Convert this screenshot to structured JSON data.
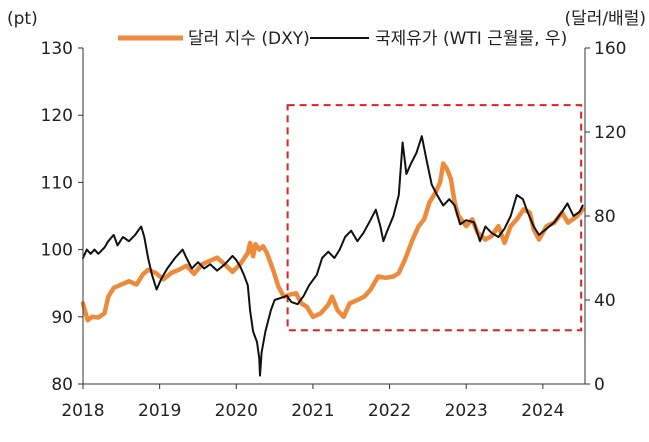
{
  "chart_data": {
    "type": "line",
    "left_axis": {
      "unit": "(pt)",
      "ticks": [
        80,
        90,
        100,
        110,
        120,
        130
      ],
      "range": [
        80,
        130
      ]
    },
    "right_axis": {
      "unit": "(달러/배럴)",
      "ticks": [
        0,
        40,
        80,
        120,
        160
      ],
      "range": [
        0,
        160
      ]
    },
    "x_axis": {
      "ticks": [
        "2018",
        "2019",
        "2020",
        "2021",
        "2022",
        "2023",
        "2024"
      ],
      "range": [
        2018.0,
        2024.55
      ]
    },
    "grid": false,
    "legend_position": "top",
    "highlight_box": {
      "x_start": 2020.67,
      "x_end": 2024.5,
      "y_start": 88,
      "y_end": 121.5,
      "axis": "left",
      "color": "#e02020",
      "style": "dashed"
    },
    "series": [
      {
        "name": "달러 지수 (DXY)",
        "axis": "left",
        "color": "#ed8a3c",
        "points": [
          [
            2018.0,
            92.0
          ],
          [
            2018.06,
            89.5
          ],
          [
            2018.12,
            90.0
          ],
          [
            2018.2,
            89.9
          ],
          [
            2018.28,
            90.5
          ],
          [
            2018.33,
            93.0
          ],
          [
            2018.4,
            94.3
          ],
          [
            2018.5,
            94.8
          ],
          [
            2018.6,
            95.3
          ],
          [
            2018.7,
            94.8
          ],
          [
            2018.78,
            96.3
          ],
          [
            2018.85,
            97.0
          ],
          [
            2018.95,
            96.5
          ],
          [
            2019.05,
            95.6
          ],
          [
            2019.15,
            96.5
          ],
          [
            2019.25,
            97.0
          ],
          [
            2019.35,
            97.6
          ],
          [
            2019.45,
            96.4
          ],
          [
            2019.55,
            97.8
          ],
          [
            2019.65,
            98.3
          ],
          [
            2019.75,
            98.8
          ],
          [
            2019.85,
            97.8
          ],
          [
            2019.95,
            96.7
          ],
          [
            2020.05,
            97.8
          ],
          [
            2020.15,
            99.5
          ],
          [
            2020.18,
            101.0
          ],
          [
            2020.22,
            99.0
          ],
          [
            2020.25,
            100.8
          ],
          [
            2020.3,
            100.0
          ],
          [
            2020.35,
            100.5
          ],
          [
            2020.4,
            99.5
          ],
          [
            2020.48,
            97.0
          ],
          [
            2020.55,
            94.5
          ],
          [
            2020.62,
            93.0
          ],
          [
            2020.7,
            93.3
          ],
          [
            2020.78,
            93.5
          ],
          [
            2020.85,
            92.0
          ],
          [
            2020.92,
            91.5
          ],
          [
            2021.0,
            90.0
          ],
          [
            2021.1,
            90.5
          ],
          [
            2021.2,
            91.8
          ],
          [
            2021.25,
            93.0
          ],
          [
            2021.32,
            91.0
          ],
          [
            2021.4,
            90.0
          ],
          [
            2021.48,
            92.0
          ],
          [
            2021.58,
            92.5
          ],
          [
            2021.67,
            93.0
          ],
          [
            2021.75,
            94.0
          ],
          [
            2021.85,
            96.0
          ],
          [
            2021.95,
            95.8
          ],
          [
            2022.05,
            96.0
          ],
          [
            2022.12,
            96.5
          ],
          [
            2022.2,
            98.5
          ],
          [
            2022.3,
            101.5
          ],
          [
            2022.38,
            103.5
          ],
          [
            2022.45,
            104.5
          ],
          [
            2022.52,
            107.0
          ],
          [
            2022.6,
            108.5
          ],
          [
            2022.66,
            110.0
          ],
          [
            2022.7,
            112.8
          ],
          [
            2022.75,
            112.0
          ],
          [
            2022.8,
            110.5
          ],
          [
            2022.85,
            107.0
          ],
          [
            2022.9,
            105.0
          ],
          [
            2023.0,
            103.5
          ],
          [
            2023.08,
            104.5
          ],
          [
            2023.15,
            102.5
          ],
          [
            2023.25,
            101.5
          ],
          [
            2023.33,
            102.0
          ],
          [
            2023.42,
            103.5
          ],
          [
            2023.5,
            101.0
          ],
          [
            2023.58,
            103.5
          ],
          [
            2023.66,
            104.5
          ],
          [
            2023.75,
            106.0
          ],
          [
            2023.83,
            105.5
          ],
          [
            2023.88,
            103.0
          ],
          [
            2023.95,
            101.5
          ],
          [
            2024.05,
            103.5
          ],
          [
            2024.15,
            104.0
          ],
          [
            2024.25,
            105.5
          ],
          [
            2024.33,
            104.0
          ],
          [
            2024.45,
            105.0
          ],
          [
            2024.52,
            106.0
          ]
        ]
      },
      {
        "name": "국제유가 (WTI 근월물, 우)",
        "axis": "right",
        "color": "#111111",
        "points": [
          [
            2018.0,
            60
          ],
          [
            2018.05,
            64
          ],
          [
            2018.1,
            62
          ],
          [
            2018.15,
            64
          ],
          [
            2018.2,
            62
          ],
          [
            2018.28,
            65
          ],
          [
            2018.33,
            68
          ],
          [
            2018.4,
            71
          ],
          [
            2018.45,
            66
          ],
          [
            2018.52,
            70
          ],
          [
            2018.6,
            68
          ],
          [
            2018.68,
            71
          ],
          [
            2018.76,
            75
          ],
          [
            2018.8,
            70
          ],
          [
            2018.85,
            60
          ],
          [
            2018.9,
            52
          ],
          [
            2018.96,
            45
          ],
          [
            2019.02,
            50
          ],
          [
            2019.1,
            55
          ],
          [
            2019.2,
            60
          ],
          [
            2019.3,
            64
          ],
          [
            2019.35,
            60
          ],
          [
            2019.42,
            55
          ],
          [
            2019.5,
            58
          ],
          [
            2019.58,
            55
          ],
          [
            2019.66,
            57
          ],
          [
            2019.75,
            54
          ],
          [
            2019.85,
            57
          ],
          [
            2019.95,
            61
          ],
          [
            2020.0,
            59
          ],
          [
            2020.05,
            56
          ],
          [
            2020.1,
            52
          ],
          [
            2020.15,
            47
          ],
          [
            2020.18,
            35
          ],
          [
            2020.22,
            25
          ],
          [
            2020.27,
            20
          ],
          [
            2020.3,
            12
          ],
          [
            2020.31,
            4
          ],
          [
            2020.33,
            15
          ],
          [
            2020.38,
            25
          ],
          [
            2020.45,
            35
          ],
          [
            2020.5,
            40
          ],
          [
            2020.58,
            41
          ],
          [
            2020.66,
            42
          ],
          [
            2020.72,
            39
          ],
          [
            2020.8,
            38
          ],
          [
            2020.88,
            42
          ],
          [
            2020.95,
            47
          ],
          [
            2021.05,
            52
          ],
          [
            2021.12,
            60
          ],
          [
            2021.2,
            63
          ],
          [
            2021.28,
            60
          ],
          [
            2021.35,
            64
          ],
          [
            2021.42,
            70
          ],
          [
            2021.5,
            73
          ],
          [
            2021.58,
            68
          ],
          [
            2021.66,
            72
          ],
          [
            2021.75,
            78
          ],
          [
            2021.82,
            83
          ],
          [
            2021.88,
            75
          ],
          [
            2021.92,
            68
          ],
          [
            2021.96,
            72
          ],
          [
            2022.05,
            80
          ],
          [
            2022.12,
            90
          ],
          [
            2022.17,
            115
          ],
          [
            2022.22,
            100
          ],
          [
            2022.28,
            105
          ],
          [
            2022.35,
            110
          ],
          [
            2022.42,
            118
          ],
          [
            2022.48,
            107
          ],
          [
            2022.55,
            95
          ],
          [
            2022.62,
            90
          ],
          [
            2022.7,
            85
          ],
          [
            2022.78,
            88
          ],
          [
            2022.85,
            85
          ],
          [
            2022.92,
            76
          ],
          [
            2023.0,
            78
          ],
          [
            2023.1,
            77
          ],
          [
            2023.18,
            68
          ],
          [
            2023.25,
            75
          ],
          [
            2023.33,
            72
          ],
          [
            2023.42,
            70
          ],
          [
            2023.5,
            74
          ],
          [
            2023.58,
            80
          ],
          [
            2023.66,
            90
          ],
          [
            2023.74,
            88
          ],
          [
            2023.8,
            82
          ],
          [
            2023.88,
            75
          ],
          [
            2023.95,
            71
          ],
          [
            2024.05,
            74
          ],
          [
            2024.15,
            77
          ],
          [
            2024.25,
            82
          ],
          [
            2024.32,
            86
          ],
          [
            2024.4,
            80
          ],
          [
            2024.48,
            82
          ],
          [
            2024.52,
            85
          ]
        ]
      }
    ]
  }
}
